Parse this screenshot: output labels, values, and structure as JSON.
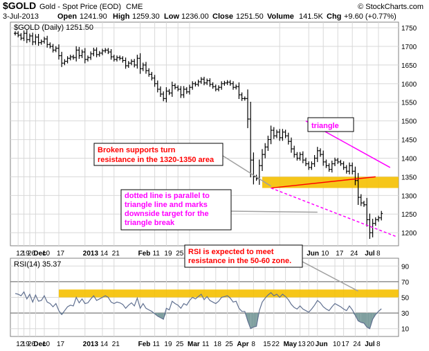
{
  "header": {
    "symbol": "$GOLD",
    "name": "Gold - Spot Price (EOD)",
    "exchange": "CME",
    "date": "3-Jul-2013",
    "open_label": "Open",
    "open": "1241.90",
    "high_label": "High",
    "high": "1259.30",
    "low_label": "Low",
    "low": "1236.00",
    "close_label": "Close",
    "close": "1251.50",
    "volume_label": "Volume",
    "volume": "141.5K",
    "chg_label": "Chg",
    "chg": "+9.60 (+0.77%)",
    "watermark": "© StockCharts.com",
    "legend_main": "$GOLD (Daily) 1251.50",
    "legend_rsi": "RSI(14) 35.37"
  },
  "colors": {
    "background": "#ffffff",
    "panel_bg": "#ffffff",
    "grid": "#d8d8d8",
    "price_bar": "#000000",
    "zone": "#f5c000",
    "triangle": "#ff00ff",
    "support_line": "#ff0000",
    "annotation_red": "#ff0000",
    "annotation_magenta": "#ff00ff",
    "rsi_line": "#607090",
    "rsi_fill": "#80a0a0",
    "red_frame": "#cc0000"
  },
  "annotations": [
    {
      "id": "broken-supports",
      "lines": [
        "Broken supports turn",
        "resistance in the 1320-1350 area"
      ],
      "color": "#ff0000"
    },
    {
      "id": "triangle",
      "lines": [
        "triangle"
      ],
      "color": "#ff00ff"
    },
    {
      "id": "dotted-line",
      "lines": [
        "dotted line is parallel to",
        "triangle line and marks",
        "downside target for the",
        "triangle break"
      ],
      "color": "#ff00ff"
    },
    {
      "id": "rsi-note",
      "lines": [
        "RSI is expected to meet",
        "resistance in the 50-60 zone."
      ],
      "color": "#ff0000"
    }
  ],
  "x_labels_main": [
    {
      "t": 1,
      "label": "12"
    },
    {
      "t": 3,
      "label": "19"
    },
    {
      "t": 5,
      "label": "26"
    },
    {
      "t": 7,
      "label": "Dec"
    },
    {
      "t": 10,
      "label": "10"
    },
    {
      "t": 15,
      "label": "17"
    },
    {
      "t": 24,
      "label": "2013"
    },
    {
      "t": 30,
      "label": "14"
    },
    {
      "t": 34,
      "label": "21"
    },
    {
      "t": 43,
      "label": "Feb"
    },
    {
      "t": 48,
      "label": "11"
    },
    {
      "t": 52,
      "label": "19"
    },
    {
      "t": 56,
      "label": "25"
    },
    {
      "t": 60,
      "label": "M"
    },
    {
      "t": 91,
      "label": "20"
    },
    {
      "t": 101,
      "label": "Jun"
    },
    {
      "t": 106,
      "label": "10"
    },
    {
      "t": 111,
      "label": "17"
    },
    {
      "t": 116,
      "label": "24"
    },
    {
      "t": 121,
      "label": "Jul"
    },
    {
      "t": 125,
      "label": "8"
    }
  ],
  "x_labels_rsi": [
    {
      "t": 1,
      "label": "12"
    },
    {
      "t": 3,
      "label": "19"
    },
    {
      "t": 5,
      "label": "26"
    },
    {
      "t": 7,
      "label": "Dec"
    },
    {
      "t": 10,
      "label": "10"
    },
    {
      "t": 15,
      "label": "17"
    },
    {
      "t": 24,
      "label": "2013"
    },
    {
      "t": 30,
      "label": "14"
    },
    {
      "t": 34,
      "label": "21"
    },
    {
      "t": 43,
      "label": "Feb"
    },
    {
      "t": 48,
      "label": "11"
    },
    {
      "t": 52,
      "label": "19"
    },
    {
      "t": 56,
      "label": "25"
    },
    {
      "t": 60,
      "label": "Mar"
    },
    {
      "t": 65,
      "label": "11"
    },
    {
      "t": 69,
      "label": "18"
    },
    {
      "t": 73,
      "label": "25"
    },
    {
      "t": 77,
      "label": "Apr"
    },
    {
      "t": 82,
      "label": "8"
    },
    {
      "t": 86,
      "label": "15"
    },
    {
      "t": 89,
      "label": "22"
    },
    {
      "t": 93,
      "label": "May"
    },
    {
      "t": 98,
      "label": "13"
    },
    {
      "t": 101,
      "label": "20"
    },
    {
      "t": 104,
      "label": "Jun"
    },
    {
      "t": 110,
      "label": "10"
    },
    {
      "t": 113,
      "label": "17"
    },
    {
      "t": 117,
      "label": "24"
    },
    {
      "t": 121,
      "label": "Jul"
    },
    {
      "t": 125,
      "label": "8"
    }
  ],
  "chart_data": [
    {
      "type": "ohlc",
      "title": "$GOLD (Daily) 1251.50",
      "ylim": [
        1165,
        1765
      ],
      "y_ticks": [
        1200,
        1250,
        1300,
        1350,
        1400,
        1450,
        1500,
        1550,
        1600,
        1650,
        1700,
        1750
      ],
      "grid": true,
      "resistance_zone": [
        1320,
        1350
      ],
      "triangle_upper": [
        [
          100,
          1500
        ],
        [
          129,
          1375
        ]
      ],
      "triangle_lower": [
        [
          88,
          1320
        ],
        [
          124,
          1350
        ]
      ],
      "target_line": [
        [
          88,
          1320
        ],
        [
          131,
          1190
        ]
      ],
      "close_series": [
        1735,
        1730,
        1722,
        1735,
        1718,
        1728,
        1712,
        1725,
        1710,
        1713,
        1720,
        1705,
        1700,
        1690,
        1695,
        1675,
        1655,
        1660,
        1668,
        1672,
        1670,
        1690,
        1675,
        1685,
        1665,
        1670,
        1680,
        1690,
        1678,
        1682,
        1688,
        1690,
        1685,
        1672,
        1665,
        1670,
        1668,
        1662,
        1648,
        1655,
        1660,
        1650,
        1668,
        1640,
        1650,
        1635,
        1625,
        1615,
        1600,
        1585,
        1572,
        1560,
        1580,
        1575,
        1595,
        1590,
        1585,
        1570,
        1585,
        1578,
        1590,
        1600,
        1598,
        1605,
        1612,
        1602,
        1608,
        1598,
        1592,
        1585,
        1590,
        1600,
        1602,
        1604,
        1600,
        1590,
        1592,
        1570,
        1560,
        1560,
        1505,
        1395,
        1350,
        1345,
        1380,
        1410,
        1430,
        1450,
        1475,
        1460,
        1470,
        1455,
        1470,
        1460,
        1445,
        1425,
        1410,
        1400,
        1410,
        1395,
        1385,
        1375,
        1385,
        1400,
        1420,
        1410,
        1390,
        1380,
        1370,
        1385,
        1395,
        1390,
        1385,
        1375,
        1365,
        1380,
        1365,
        1340,
        1295,
        1280,
        1275,
        1235,
        1200,
        1225,
        1235,
        1240,
        1251.5
      ]
    },
    {
      "type": "line",
      "title": "RSI(14) 35.37",
      "ylim": [
        0,
        100
      ],
      "y_ticks": [
        10,
        30,
        50,
        70,
        90
      ],
      "reference_lines": [
        30,
        70
      ],
      "resistance_zone": [
        50,
        60
      ],
      "series": [
        {
          "values": [
            55,
            54,
            52,
            57,
            48,
            54,
            44,
            53,
            45,
            46,
            52,
            44,
            42,
            38,
            42,
            33,
            28,
            33,
            38,
            40,
            39,
            50,
            43,
            48,
            42,
            43,
            48,
            52,
            46,
            48,
            50,
            52,
            50,
            44,
            42,
            44,
            43,
            41,
            36,
            40,
            43,
            39,
            49,
            36,
            42,
            36,
            34,
            32,
            29,
            26,
            24,
            22,
            36,
            34,
            45,
            42,
            40,
            36,
            42,
            40,
            46,
            50,
            48,
            51,
            54,
            47,
            51,
            46,
            44,
            42,
            45,
            50,
            51,
            52,
            49,
            44,
            45,
            36,
            32,
            32,
            20,
            10,
            12,
            13,
            33,
            44,
            49,
            53,
            56,
            52,
            54,
            50,
            54,
            51,
            47,
            41,
            37,
            35,
            39,
            35,
            33,
            31,
            35,
            40,
            46,
            43,
            38,
            35,
            33,
            38,
            42,
            40,
            38,
            35,
            33,
            39,
            34,
            27,
            20,
            18,
            17,
            12,
            10,
            22,
            28,
            32,
            35.37
          ]
        }
      ]
    }
  ]
}
